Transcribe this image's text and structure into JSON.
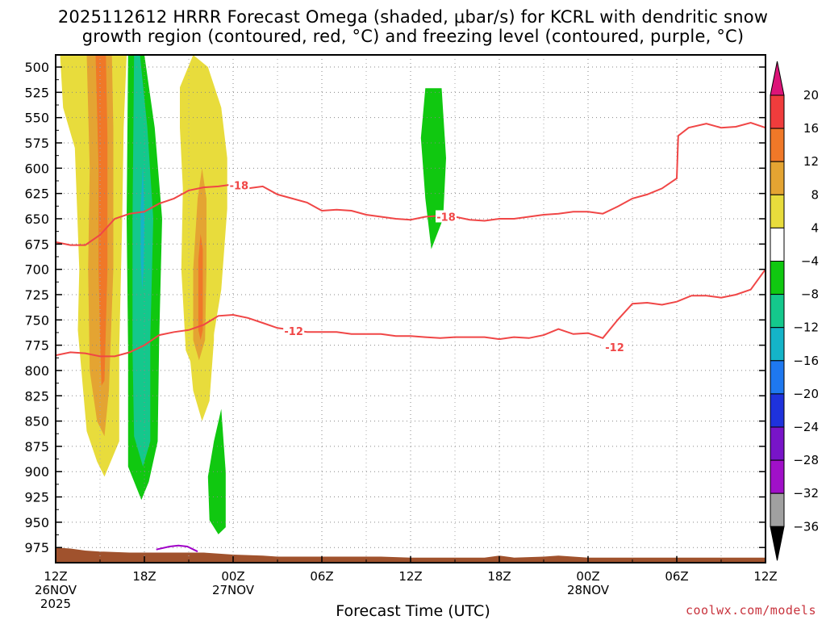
{
  "title_line1": "2025112612 HRRR Forecast Omega (shaded, μbar/s) for KCRL with dendritic snow",
  "title_line2": "growth region (contoured, red, °C) and freezing level (contoured, purple, °C)",
  "x_axis_label": "Forecast Time (UTC)",
  "credit": "coolwx.com/models",
  "chart_data": {
    "type": "time-height contour",
    "x_hours": [
      0,
      48
    ],
    "y_pressure_hpa": [
      488,
      990
    ],
    "y_ticks": [
      500,
      525,
      550,
      575,
      600,
      625,
      650,
      675,
      700,
      725,
      750,
      775,
      800,
      825,
      850,
      875,
      900,
      925,
      950,
      975
    ],
    "x_ticks": [
      {
        "h": 0,
        "line1": "12Z",
        "line2": "26NOV",
        "line3": "2025"
      },
      {
        "h": 6,
        "line1": "18Z",
        "line2": "",
        "line3": ""
      },
      {
        "h": 12,
        "line1": "00Z",
        "line2": "27NOV",
        "line3": ""
      },
      {
        "h": 18,
        "line1": "06Z",
        "line2": "",
        "line3": ""
      },
      {
        "h": 24,
        "line1": "12Z",
        "line2": "",
        "line3": ""
      },
      {
        "h": 30,
        "line1": "18Z",
        "line2": "",
        "line3": ""
      },
      {
        "h": 36,
        "line1": "00Z",
        "line2": "28NOV",
        "line3": ""
      },
      {
        "h": 42,
        "line1": "06Z",
        "line2": "",
        "line3": ""
      },
      {
        "h": 48,
        "line1": "12Z",
        "line2": "",
        "line3": ""
      }
    ],
    "colorbar": {
      "labels": [
        "20",
        "16",
        "12",
        "8",
        "4",
        "−4",
        "−8",
        "−12",
        "−16",
        "−20",
        "−24",
        "−28",
        "−32",
        "−36"
      ],
      "colors": [
        "#f03c3c",
        "#f07828",
        "#e4a432",
        "#e8dc3c",
        "#ffffff",
        "#10c810",
        "#14c88c",
        "#14b4c8",
        "#1e78f0",
        "#1e32dc",
        "#7814c8",
        "#a010c8",
        "#a0a0a0"
      ],
      "top_arrow": "#dc1478",
      "bottom_arrow": "#000000"
    },
    "omega_regions": [
      {
        "level": "4 to 8",
        "color": "#e8dc3c",
        "points": [
          [
            0.3,
            488
          ],
          [
            4.8,
            488
          ],
          [
            4.6,
            560
          ],
          [
            4.5,
            650
          ],
          [
            4.3,
            780
          ],
          [
            4.3,
            870
          ],
          [
            3.3,
            905
          ],
          [
            2.8,
            890
          ],
          [
            2.1,
            860
          ],
          [
            1.5,
            760
          ],
          [
            1.6,
            700
          ],
          [
            1.3,
            580
          ],
          [
            0.5,
            540
          ],
          [
            0.3,
            488
          ]
        ]
      },
      {
        "level": "4 to 8",
        "color": "#e8dc3c",
        "points": [
          [
            9.3,
            488
          ],
          [
            10.3,
            500
          ],
          [
            11.2,
            540
          ],
          [
            11.6,
            590
          ],
          [
            11.6,
            640
          ],
          [
            11.2,
            720
          ],
          [
            10.3,
            800
          ],
          [
            9.5,
            805
          ],
          [
            8.8,
            780
          ],
          [
            8.5,
            700
          ],
          [
            8.6,
            620
          ],
          [
            8.4,
            560
          ],
          [
            8.4,
            520
          ],
          [
            9.3,
            488
          ]
        ]
      },
      {
        "level": "4 to 8",
        "color": "#e8dc3c",
        "points": [
          [
            9.9,
            588
          ],
          [
            10.4,
            610
          ],
          [
            10.7,
            680
          ],
          [
            10.7,
            770
          ],
          [
            10.4,
            830
          ],
          [
            9.9,
            850
          ],
          [
            9.3,
            820
          ],
          [
            8.9,
            760
          ],
          [
            9.0,
            680
          ],
          [
            9.4,
            620
          ],
          [
            9.9,
            588
          ]
        ]
      },
      {
        "level": "8 to 12",
        "color": "#e4a432",
        "points": [
          [
            2.1,
            488
          ],
          [
            3.8,
            488
          ],
          [
            3.9,
            560
          ],
          [
            3.9,
            700
          ],
          [
            3.6,
            820
          ],
          [
            3.3,
            865
          ],
          [
            2.8,
            850
          ],
          [
            2.3,
            800
          ],
          [
            2.2,
            700
          ],
          [
            2.3,
            600
          ],
          [
            2.1,
            488
          ]
        ]
      },
      {
        "level": "8 to 12",
        "color": "#e4a432",
        "points": [
          [
            9.9,
            600
          ],
          [
            10.2,
            630
          ],
          [
            10.2,
            700
          ],
          [
            10.1,
            770
          ],
          [
            9.7,
            790
          ],
          [
            9.3,
            770
          ],
          [
            9.3,
            700
          ],
          [
            9.6,
            630
          ],
          [
            9.9,
            600
          ]
        ]
      },
      {
        "level": "12 to 16",
        "color": "#f07828",
        "points": [
          [
            2.7,
            488
          ],
          [
            3.4,
            488
          ],
          [
            3.5,
            570
          ],
          [
            3.5,
            700
          ],
          [
            3.3,
            810
          ],
          [
            3.1,
            815
          ],
          [
            3.0,
            770
          ],
          [
            2.9,
            700
          ],
          [
            2.9,
            600
          ],
          [
            2.7,
            488
          ]
        ]
      },
      {
        "level": "12 to 16",
        "color": "#f07828",
        "points": [
          [
            9.8,
            665
          ],
          [
            9.95,
            680
          ],
          [
            9.95,
            760
          ],
          [
            9.8,
            770
          ],
          [
            9.65,
            760
          ],
          [
            9.65,
            690
          ],
          [
            9.8,
            665
          ]
        ]
      },
      {
        "level": "-4 to -8",
        "color": "#10c810",
        "points": [
          [
            4.9,
            488
          ],
          [
            6.0,
            488
          ],
          [
            6.7,
            560
          ],
          [
            7.2,
            650
          ],
          [
            7.0,
            770
          ],
          [
            6.9,
            870
          ],
          [
            6.3,
            910
          ],
          [
            5.8,
            928
          ],
          [
            4.9,
            895
          ],
          [
            4.9,
            780
          ],
          [
            4.8,
            650
          ],
          [
            4.9,
            488
          ]
        ]
      },
      {
        "level": "-8 to -12",
        "color": "#14c88c",
        "points": [
          [
            5.3,
            488
          ],
          [
            5.7,
            488
          ],
          [
            6.2,
            560
          ],
          [
            6.6,
            650
          ],
          [
            6.4,
            770
          ],
          [
            6.4,
            870
          ],
          [
            5.9,
            895
          ],
          [
            5.3,
            865
          ],
          [
            5.2,
            780
          ],
          [
            5.2,
            650
          ],
          [
            5.3,
            488
          ]
        ]
      },
      {
        "level": "-12 to -16",
        "color": "#14b4c8",
        "points": [
          [
            5.9,
            595
          ],
          [
            6.0,
            650
          ],
          [
            5.95,
            700
          ],
          [
            5.85,
            720
          ],
          [
            5.75,
            690
          ],
          [
            5.75,
            640
          ],
          [
            5.9,
            595
          ]
        ]
      },
      {
        "level": "-4 to -8",
        "color": "#10c810",
        "points": [
          [
            11.2,
            838
          ],
          [
            11.5,
            900
          ],
          [
            11.5,
            955
          ],
          [
            11.0,
            962
          ],
          [
            10.4,
            948
          ],
          [
            10.3,
            905
          ],
          [
            10.7,
            870
          ],
          [
            11.2,
            838
          ]
        ]
      },
      {
        "level": "-4 to -8",
        "color": "#10c810",
        "points": [
          [
            25.0,
            521
          ],
          [
            26.1,
            521
          ],
          [
            26.4,
            590
          ],
          [
            26.2,
            650
          ],
          [
            25.4,
            680
          ],
          [
            25.0,
            630
          ],
          [
            24.7,
            570
          ],
          [
            25.0,
            521
          ]
        ]
      }
    ],
    "dgz_contours": [
      {
        "label": "-18",
        "color": "#f04646",
        "points": [
          [
            0,
            673
          ],
          [
            1,
            676
          ],
          [
            2,
            676
          ],
          [
            3,
            666
          ],
          [
            4,
            650
          ],
          [
            5,
            645
          ],
          [
            6,
            643
          ],
          [
            7,
            635
          ],
          [
            8,
            630
          ],
          [
            9,
            622
          ],
          [
            10,
            619
          ],
          [
            11,
            618
          ],
          [
            12,
            616
          ],
          [
            13,
            620
          ],
          [
            14,
            618
          ],
          [
            15,
            626
          ],
          [
            16,
            630
          ],
          [
            17,
            634
          ],
          [
            18,
            642
          ],
          [
            19,
            641
          ],
          [
            20,
            642
          ],
          [
            21,
            646
          ],
          [
            22,
            648
          ],
          [
            23,
            650
          ],
          [
            24,
            651
          ],
          [
            25,
            648
          ],
          [
            26,
            647
          ],
          [
            27,
            648
          ],
          [
            28,
            651
          ],
          [
            29,
            652
          ],
          [
            30,
            650
          ],
          [
            31,
            650
          ],
          [
            32,
            648
          ],
          [
            33,
            646
          ],
          [
            34,
            645
          ],
          [
            35,
            643
          ],
          [
            36,
            643
          ],
          [
            37,
            645
          ],
          [
            38,
            638
          ],
          [
            39,
            630
          ],
          [
            40,
            626
          ],
          [
            41,
            620
          ],
          [
            42,
            610
          ],
          [
            42.1,
            568
          ],
          [
            42.8,
            560
          ],
          [
            44,
            556
          ],
          [
            45,
            560
          ],
          [
            46,
            559
          ],
          [
            47,
            555
          ],
          [
            48,
            560
          ]
        ]
      },
      {
        "label": "-12",
        "color": "#f04646",
        "points": [
          [
            0,
            785
          ],
          [
            1,
            782
          ],
          [
            2,
            783
          ],
          [
            3,
            786
          ],
          [
            4,
            786
          ],
          [
            5,
            782
          ],
          [
            6,
            775
          ],
          [
            7,
            765
          ],
          [
            8,
            762
          ],
          [
            9,
            760
          ],
          [
            10,
            755
          ],
          [
            11,
            746
          ],
          [
            12,
            745
          ],
          [
            13,
            748
          ],
          [
            14,
            753
          ],
          [
            15,
            758
          ],
          [
            16,
            760
          ],
          [
            17,
            762
          ],
          [
            18,
            762
          ],
          [
            19,
            762
          ],
          [
            20,
            764
          ],
          [
            21,
            764
          ],
          [
            22,
            764
          ],
          [
            23,
            766
          ],
          [
            24,
            766
          ],
          [
            25,
            767
          ],
          [
            26,
            768
          ],
          [
            27,
            767
          ],
          [
            28,
            767
          ],
          [
            29,
            767
          ],
          [
            30,
            769
          ],
          [
            31,
            767
          ],
          [
            32,
            768
          ],
          [
            33,
            765
          ],
          [
            34,
            759
          ],
          [
            35,
            764
          ],
          [
            36,
            763
          ],
          [
            37,
            768
          ],
          [
            38,
            750
          ],
          [
            39,
            734
          ],
          [
            40,
            733
          ],
          [
            41,
            735
          ],
          [
            42,
            732
          ],
          [
            43,
            726
          ],
          [
            44,
            726
          ],
          [
            45,
            728
          ],
          [
            46,
            725
          ],
          [
            47,
            720
          ],
          [
            48,
            700
          ]
        ]
      }
    ],
    "freezing_level": {
      "label": "0",
      "color": "#a000c8",
      "points": [
        [
          6.8,
          977
        ],
        [
          7.7,
          974
        ],
        [
          8.3,
          973
        ],
        [
          8.9,
          974
        ],
        [
          9.6,
          979
        ]
      ]
    },
    "terrain": {
      "color": "#a0522d",
      "points": [
        [
          0,
          975
        ],
        [
          1,
          976
        ],
        [
          2,
          978
        ],
        [
          3,
          979
        ],
        [
          5,
          980
        ],
        [
          6,
          980
        ],
        [
          8,
          980
        ],
        [
          10,
          980
        ],
        [
          11,
          981
        ],
        [
          12,
          982
        ],
        [
          14,
          983
        ],
        [
          15,
          984
        ],
        [
          18,
          984
        ],
        [
          22,
          984
        ],
        [
          24,
          985
        ],
        [
          26,
          985
        ],
        [
          27,
          985
        ],
        [
          29,
          985
        ],
        [
          30,
          983
        ],
        [
          31,
          985
        ],
        [
          33,
          984
        ],
        [
          34,
          983
        ],
        [
          35,
          984
        ],
        [
          36,
          985
        ],
        [
          38,
          985
        ],
        [
          40,
          985
        ],
        [
          42,
          985
        ],
        [
          44,
          985
        ],
        [
          46,
          985
        ],
        [
          48,
          985
        ]
      ]
    }
  }
}
